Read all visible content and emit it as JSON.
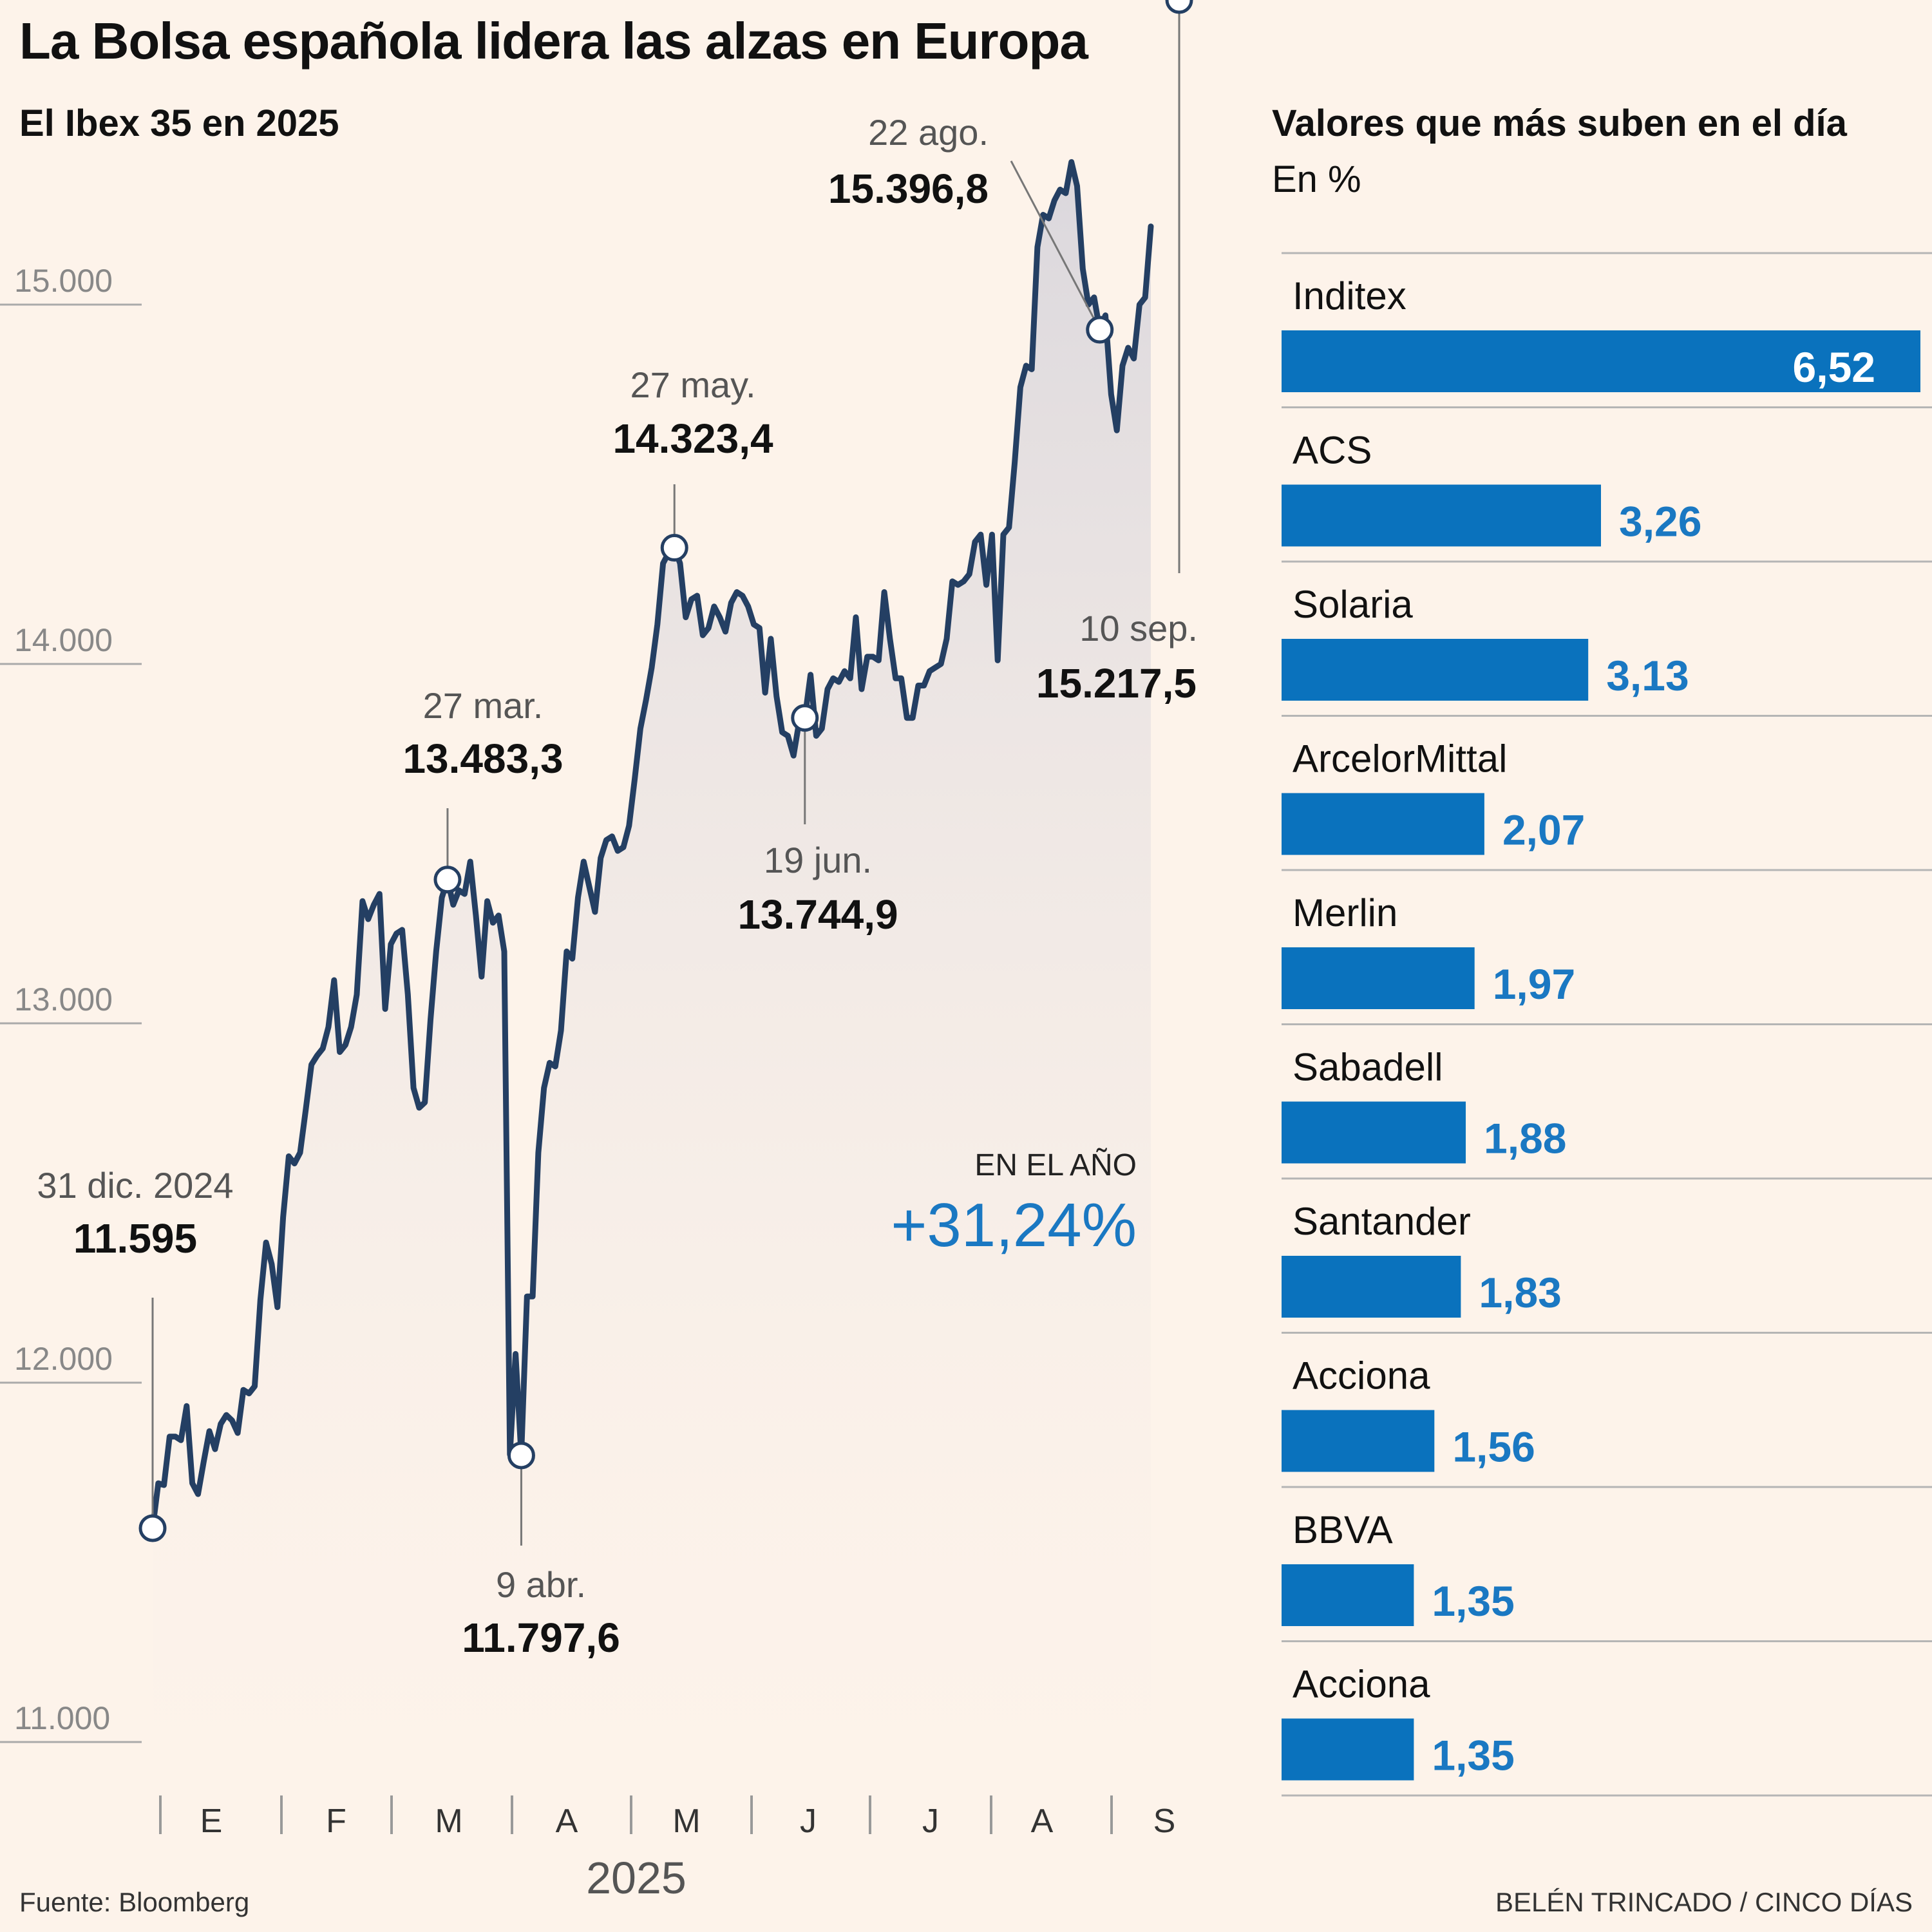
{
  "title": "La Bolsa española lidera las alzas en Europa",
  "colors": {
    "line": "#243f63",
    "bar": "#0a72bd",
    "bar_value": "#1a78c2",
    "bar_value_inside": "#ffffff",
    "background": "#fdf3ea",
    "axis": "#aaaaaa"
  },
  "chart_data": [
    {
      "type": "line",
      "title": "El Ibex 35 en 2025",
      "xlabel": "2025",
      "ylabel": "",
      "ylim": [
        11000,
        15500
      ],
      "yticks": [
        11000,
        12000,
        13000,
        14000,
        15000
      ],
      "ytick_labels": [
        "11.000",
        "12.000",
        "13.000",
        "14.000",
        "15.000"
      ],
      "month_labels": [
        "E",
        "F",
        "M",
        "A",
        "M",
        "J",
        "J",
        "A",
        "S"
      ],
      "series": [
        {
          "name": "Ibex 35",
          "values": [
            11595,
            11720,
            11715,
            11850,
            11850,
            11840,
            11935,
            11720,
            11690,
            11780,
            11865,
            11815,
            11885,
            11910,
            11895,
            11860,
            11980,
            11970,
            11990,
            12230,
            12390,
            12330,
            12210,
            12460,
            12630,
            12610,
            12640,
            12760,
            12885,
            12910,
            12930,
            12990,
            13120,
            12920,
            12940,
            12990,
            13080,
            13340,
            13290,
            13330,
            13360,
            13040,
            13220,
            13250,
            13260,
            13080,
            12820,
            12765,
            12780,
            13010,
            13200,
            13350,
            13400,
            13330,
            13370,
            13360,
            13450,
            13300,
            13130,
            13340,
            13280,
            13300,
            13200,
            11800,
            12080,
            11797.6,
            12240,
            12240,
            12640,
            12820,
            12890,
            12880,
            12980,
            13200,
            13180,
            13350,
            13450,
            13380,
            13310,
            13460,
            13510,
            13520,
            13480,
            13490,
            13550,
            13680,
            13820,
            13900,
            13990,
            14110,
            14280,
            14310,
            14323.4,
            14280,
            14130,
            14180,
            14190,
            14080,
            14100,
            14160,
            14130,
            14090,
            14170,
            14200,
            14190,
            14160,
            14110,
            14100,
            13920,
            14070,
            13910,
            13810,
            13800,
            13744.9,
            13840,
            13850,
            13970,
            13800,
            13820,
            13930,
            13960,
            13950,
            13980,
            13960,
            14130,
            13930,
            14020,
            14020,
            14010,
            14200,
            14070,
            13960,
            13960,
            13850,
            13850,
            13940,
            13940,
            13980,
            13990,
            14000,
            14070,
            14230,
            14220,
            14230,
            14250,
            14340,
            14360,
            14220,
            14360,
            14010,
            14360,
            14380,
            14560,
            14770,
            14830,
            14820,
            15160,
            15250,
            15240,
            15290,
            15320,
            15310,
            15396.8,
            15330,
            15100,
            15000,
            15020,
            14930,
            14970,
            14750,
            14650,
            14830,
            14880,
            14850,
            15000,
            15020,
            15217.5
          ]
        }
      ],
      "annotations": [
        {
          "date": "31 dic. 2024",
          "value": "11.595"
        },
        {
          "date": "27 mar.",
          "value": "13.483,3"
        },
        {
          "date": "9 abr.",
          "value": "11.797,6"
        },
        {
          "date": "27 may.",
          "value": "14.323,4"
        },
        {
          "date": "19 jun.",
          "value": "13.744,9"
        },
        {
          "date": "22 ago.",
          "value": "15.396,8"
        },
        {
          "date": "10 sep.",
          "value": "15.217,5"
        }
      ],
      "ytd": {
        "label": "EN EL AÑO",
        "value": "+31,24%"
      }
    },
    {
      "type": "bar",
      "orientation": "horizontal",
      "title": "Valores que más suben en el día",
      "unit_label": "En %",
      "categories": [
        "Inditex",
        "ACS",
        "Solaria",
        "ArcelorMittal",
        "Merlin",
        "Sabadell",
        "Santander",
        "Acciona",
        "BBVA",
        "Acciona"
      ],
      "values": [
        6.52,
        3.26,
        3.13,
        2.07,
        1.97,
        1.88,
        1.83,
        1.56,
        1.35,
        1.35
      ],
      "value_labels": [
        "6,52",
        "3,26",
        "3,13",
        "2,07",
        "1,97",
        "1,88",
        "1,83",
        "1,56",
        "1,35",
        "1,35"
      ],
      "xlim": [
        0,
        6.52
      ]
    }
  ],
  "footer": {
    "source": "Fuente: Bloomberg",
    "credit": "BELÉN TRINCADO / CINCO DÍAS"
  }
}
